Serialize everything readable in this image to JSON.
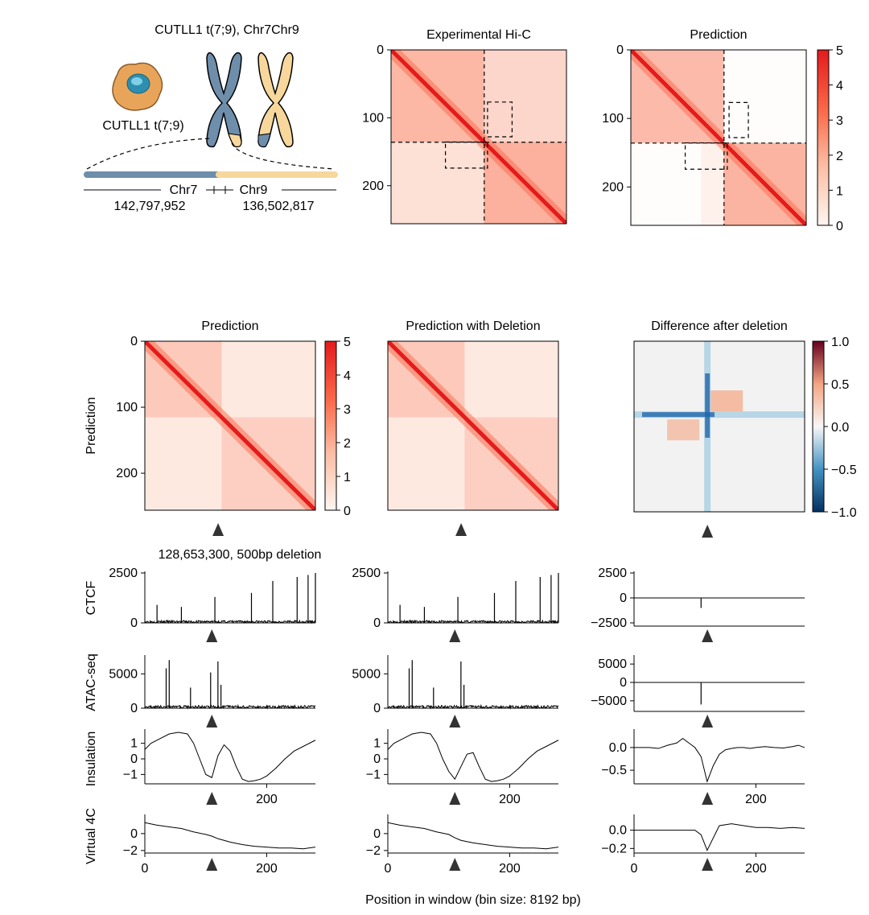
{
  "chart_data": [
    {
      "type": "schematic",
      "title": "CUTLL1 t(7;9), Chr7Chr9",
      "cell_label": "CUTLL1 t(7;9)",
      "segments": [
        {
          "name": "Chr7",
          "color": "#6e8eab",
          "position": "142,797,952"
        },
        {
          "name": "Chr9",
          "color": "#f7d79b",
          "position": "136,502,817"
        }
      ]
    },
    {
      "type": "heatmap",
      "title": "Experimental Hi-C",
      "colormap": "Reds",
      "ylim": [
        256,
        0
      ],
      "yticks": [
        "0",
        "100",
        "200"
      ],
      "boundary_bin": 136,
      "highlight_boxes": [
        {
          "rows": [
            80,
            128
          ],
          "cols": [
            136,
            170
          ]
        },
        {
          "rows": [
            136,
            176
          ],
          "cols": [
            80,
            136
          ]
        }
      ]
    },
    {
      "type": "heatmap",
      "title": "Prediction",
      "colormap": "Reds",
      "ylim": [
        256,
        0
      ],
      "yticks": [
        "0",
        "100",
        "200"
      ],
      "colorbar": {
        "range": [
          0,
          5
        ],
        "ticks": [
          "0",
          "1",
          "2",
          "3",
          "4",
          "5"
        ]
      }
    },
    {
      "type": "heatmap",
      "title": "Prediction",
      "row_label": "Prediction",
      "colormap": "Reds",
      "yticks": [
        "0",
        "100",
        "200"
      ],
      "deletion_bin": 110,
      "colorbar": {
        "range": [
          0,
          5
        ],
        "ticks": [
          "0",
          "1",
          "2",
          "3",
          "4",
          "5"
        ]
      }
    },
    {
      "type": "heatmap",
      "title": "Prediction with Deletion",
      "colormap": "Reds",
      "deletion_bin": 110
    },
    {
      "type": "heatmap",
      "title": "Difference after deletion",
      "colormap": "RdBu_r",
      "deletion_bin": 110,
      "colorbar": {
        "range": [
          -1.0,
          1.0
        ],
        "ticks": [
          "1.0",
          "0.5",
          "0.0",
          "−0.5",
          "−1.0"
        ]
      }
    },
    {
      "type": "line",
      "title": "128,653,300, 500bp deletion",
      "xlabel": "Position in window (bin size: 8192 bp)",
      "xticks": [
        "0",
        "200"
      ],
      "tracks": [
        {
          "name": "CTCF",
          "yticks_original": [
            "2500",
            "0"
          ],
          "yticks_difference": [
            "2500",
            "0",
            "-2500"
          ],
          "ylim": [
            0,
            2500
          ],
          "diff_ylim": [
            -2500,
            2500
          ],
          "diff_spike": -1000
        },
        {
          "name": "ATAC-seq",
          "yticks_original": [
            "5000",
            "0"
          ],
          "yticks_difference": [
            "5000",
            "0",
            "-5000"
          ],
          "ylim": [
            0,
            7500
          ],
          "diff_ylim": [
            -7000,
            7000
          ],
          "diff_spike": -6000
        },
        {
          "name": "Insulation",
          "yticks_original": [
            "1",
            "0",
            "−1"
          ],
          "yticks_difference": [
            "0.0",
            "−0.5"
          ],
          "ylim": [
            -1.6,
            1.6
          ],
          "diff_ylim": [
            -0.8,
            0.3
          ],
          "x": [
            0,
            10,
            25,
            40,
            55,
            70,
            80,
            90,
            100,
            110,
            120,
            130,
            140,
            150,
            160,
            170,
            180,
            190,
            200,
            215,
            230,
            245,
            260,
            270,
            280
          ],
          "original": [
            0.6,
            1.0,
            1.3,
            1.6,
            1.7,
            1.6,
            1.0,
            0.0,
            -1.0,
            -1.2,
            0.2,
            0.9,
            0.5,
            -0.5,
            -1.3,
            -1.45,
            -1.4,
            -1.3,
            -1.1,
            -0.6,
            0.0,
            0.5,
            0.8,
            1.0,
            1.2
          ],
          "deletion": [
            0.6,
            1.0,
            1.3,
            1.6,
            1.7,
            1.6,
            1.0,
            0.0,
            -0.8,
            -1.3,
            -0.5,
            0.3,
            0.4,
            -0.5,
            -1.3,
            -1.45,
            -1.4,
            -1.3,
            -1.1,
            -0.6,
            0.0,
            0.5,
            0.8,
            1.0,
            1.2
          ],
          "difference": [
            0.0,
            0.0,
            0.0,
            -0.02,
            0.05,
            0.1,
            0.2,
            0.1,
            0.0,
            -0.2,
            -0.75,
            -0.4,
            -0.15,
            -0.05,
            -0.02,
            0.0,
            0.0,
            -0.02,
            0.0,
            0.02,
            0.0,
            -0.01,
            0.02,
            0.05,
            0.0
          ]
        },
        {
          "name": "Virtual 4C",
          "yticks_original": [
            "0",
            "−2"
          ],
          "yticks_difference": [
            "0.0",
            "−0.2"
          ],
          "ylim": [
            -2.3,
            1.7
          ],
          "diff_ylim": [
            -0.25,
            0.12
          ],
          "x": [
            0,
            20,
            40,
            60,
            80,
            100,
            110,
            120,
            140,
            160,
            180,
            200,
            220,
            240,
            260,
            280
          ],
          "original": [
            1.3,
            1.0,
            0.8,
            0.6,
            0.2,
            -0.1,
            -0.3,
            -0.6,
            -1.0,
            -1.3,
            -1.5,
            -1.6,
            -1.7,
            -1.7,
            -1.8,
            -1.6
          ],
          "deletion": [
            1.3,
            1.0,
            0.8,
            0.6,
            0.2,
            -0.1,
            -0.5,
            -0.8,
            -1.1,
            -1.3,
            -1.5,
            -1.6,
            -1.7,
            -1.7,
            -1.8,
            -1.6
          ],
          "difference": [
            0.0,
            0.0,
            0.0,
            0.0,
            0.0,
            0.0,
            -0.05,
            -0.22,
            0.05,
            0.07,
            0.05,
            0.03,
            0.03,
            0.02,
            0.03,
            0.02
          ]
        }
      ]
    }
  ]
}
